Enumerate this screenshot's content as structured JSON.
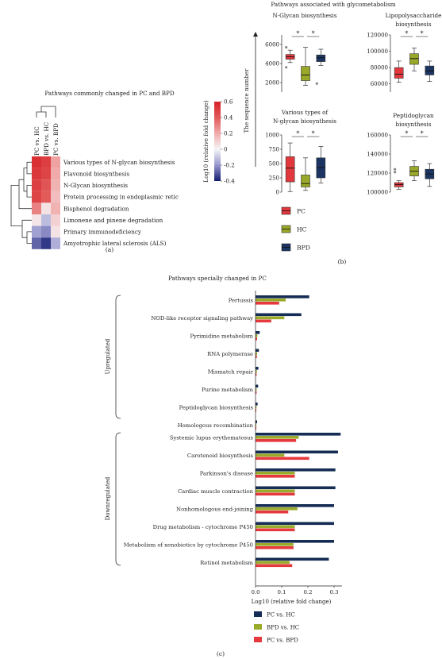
{
  "colors": {
    "pc": "#e5393e",
    "hc": "#9aab2a",
    "bpd": "#152c54",
    "box_pc": "#e2383d",
    "box_hc": "#99a828",
    "box_bpd": "#1b3461"
  },
  "panel_labels": {
    "a": "(a)",
    "b": "(b)",
    "c": "(c)"
  },
  "chart_data": [
    {
      "type": "heatmap",
      "panel": "a",
      "title": "Pathways commonly changed in PC and BPD",
      "columns": [
        "PC vs. HC",
        "BPD vs. HC",
        "PC vs. BPD"
      ],
      "rows": [
        "Various types of N-glycan biosynthesis",
        "Flavonoid biosynthesis",
        "N-Glycan biosynthesis",
        "Protein processing in endoplasmic retic",
        "Bisphenol degradation",
        "Limonene and pinene degradation",
        "Primary immunodeficiency",
        "Amyotrophic lateral sclerosis (ALS)"
      ],
      "values": [
        [
          0.55,
          0.5,
          0.22
        ],
        [
          0.52,
          0.48,
          0.2
        ],
        [
          0.5,
          0.42,
          0.18
        ],
        [
          0.48,
          0.4,
          0.15
        ],
        [
          0.3,
          0.05,
          0.18
        ],
        [
          0.04,
          -0.12,
          0.1
        ],
        [
          -0.18,
          -0.22,
          0.05
        ],
        [
          -0.28,
          -0.35,
          -0.15
        ]
      ],
      "colorbar": {
        "label": "Log10 (relative fold change)",
        "min": -0.4,
        "max": 0.6,
        "ticks": [
          "0.6",
          "0.4",
          "0.2",
          "0",
          "-0.2",
          "-0.4"
        ]
      }
    },
    {
      "type": "box",
      "panel": "b",
      "title": "Pathways associated with glycometabolism",
      "ylabel": "The sequence number",
      "groups": [
        "PC",
        "HC",
        "BPD"
      ],
      "subplots": [
        {
          "title": "N-Glycan biosynthesis",
          "ylim": [
            1000,
            7000
          ],
          "yticks": [
            "6000",
            "4000",
            "2000"
          ],
          "boxes": [
            {
              "min": 4100,
              "q1": 4450,
              "median": 4700,
              "q3": 4950,
              "max": 5400,
              "outliers": [
                5700,
                3600
              ]
            },
            {
              "min": 1700,
              "q1": 2200,
              "median": 2800,
              "q3": 3700,
              "max": 5700,
              "outliers": []
            },
            {
              "min": 3800,
              "q1": 4200,
              "median": 4600,
              "q3": 4900,
              "max": 5500,
              "outliers": [
                1900
              ]
            }
          ],
          "significance": [
            "*",
            "*"
          ]
        },
        {
          "title": "Lipopolysaccharide biosynthesis",
          "ylim": [
            50000,
            120000
          ],
          "yticks": [
            "120000",
            "100000",
            "80000",
            "60000"
          ],
          "boxes": [
            {
              "min": 62000,
              "q1": 67000,
              "median": 72000,
              "q3": 80000,
              "max": 88000,
              "outliers": []
            },
            {
              "min": 76000,
              "q1": 84000,
              "median": 91000,
              "q3": 97000,
              "max": 104000,
              "outliers": []
            },
            {
              "min": 63000,
              "q1": 71000,
              "median": 76000,
              "q3": 82000,
              "max": 88000,
              "outliers": []
            }
          ],
          "significance": [
            "*",
            "*"
          ]
        },
        {
          "title": "Various types of N-glycan biosynthesis",
          "ylim": [
            0,
            1000
          ],
          "yticks": [
            "1000",
            "750",
            "500",
            "250",
            "0"
          ],
          "boxes": [
            {
              "min": 10,
              "q1": 180,
              "median": 420,
              "q3": 620,
              "max": 860,
              "outliers": []
            },
            {
              "min": 30,
              "q1": 90,
              "median": 150,
              "q3": 300,
              "max": 600,
              "outliers": []
            },
            {
              "min": 160,
              "q1": 250,
              "median": 430,
              "q3": 600,
              "max": 800,
              "outliers": []
            }
          ],
          "significance": [
            "*",
            "*"
          ]
        },
        {
          "title": "Peptidoglycan biosynthesis",
          "ylim": [
            100000,
            160000
          ],
          "yticks": [
            "160000",
            "140000",
            "120000",
            "100000"
          ],
          "boxes": [
            {
              "min": 103000,
              "q1": 105500,
              "median": 108000,
              "q3": 110000,
              "max": 112000,
              "outliers": [
                124000,
                121000
              ]
            },
            {
              "min": 112000,
              "q1": 117000,
              "median": 122000,
              "q3": 127000,
              "max": 133000,
              "outliers": []
            },
            {
              "min": 106000,
              "q1": 114000,
              "median": 119000,
              "q3": 124000,
              "max": 130000,
              "outliers": []
            }
          ],
          "significance": [
            "*",
            "*"
          ]
        }
      ]
    },
    {
      "type": "bar",
      "panel": "c",
      "orientation": "horizontal",
      "title": "Pathways specially changed in PC",
      "xlabel": "Log10 (relative fold change)",
      "xlim": [
        0,
        0.33
      ],
      "xticks": [
        "0.0",
        "0.1",
        "0.2",
        "0.3"
      ],
      "xtick_values": [
        0,
        0.1,
        0.2,
        0.3
      ],
      "group_labels": [
        "Upregulated",
        "Downregulated"
      ],
      "series": [
        {
          "name": "PC vs. HC",
          "color": "#152c54"
        },
        {
          "name": "BPD vs. HC",
          "color": "#9aab2a"
        },
        {
          "name": "PC vs. BPD",
          "color": "#e5393e"
        }
      ],
      "groups": [
        {
          "name": "Upregulated",
          "categories": [
            "Pertussis",
            "NOD-like receptor signaling pathway",
            "Pyrimidine metabolism",
            "RNA polymerase",
            "Mismatch repair",
            "Purine metabolism",
            "Peptidoglycan biosynthesis",
            "Homologous recombination"
          ],
          "values": [
            [
              0.205,
              0.115,
              0.09
            ],
            [
              0.175,
              0.11,
              0.06
            ],
            [
              0.016,
              0.007,
              0.006
            ],
            [
              0.013,
              0.006,
              0.005
            ],
            [
              0.011,
              0.005,
              0.004
            ],
            [
              0.01,
              0.004,
              0.004
            ],
            [
              0.008,
              0.004,
              0.003
            ],
            [
              0.006,
              0.003,
              0.003
            ]
          ]
        },
        {
          "name": "Downregulated",
          "categories": [
            "Systemic lupus erythematosus",
            "Carotenoid biosynthesis",
            "Parkinson's disease",
            "Cardiac muscle contraction",
            "Nonhomologous end-joining",
            "Drug metabolism - cytochrome P450",
            "Metabolism of xenobiotics by cytochrome P450",
            "Retinol metabolism"
          ],
          "values": [
            [
              0.325,
              0.165,
              0.155
            ],
            [
              0.315,
              0.11,
              0.205
            ],
            [
              0.305,
              0.15,
              0.15
            ],
            [
              0.305,
              0.15,
              0.15
            ],
            [
              0.3,
              0.16,
              0.125
            ],
            [
              0.3,
              0.15,
              0.15
            ],
            [
              0.3,
              0.145,
              0.145
            ],
            [
              0.28,
              0.13,
              0.14
            ]
          ]
        }
      ]
    }
  ]
}
